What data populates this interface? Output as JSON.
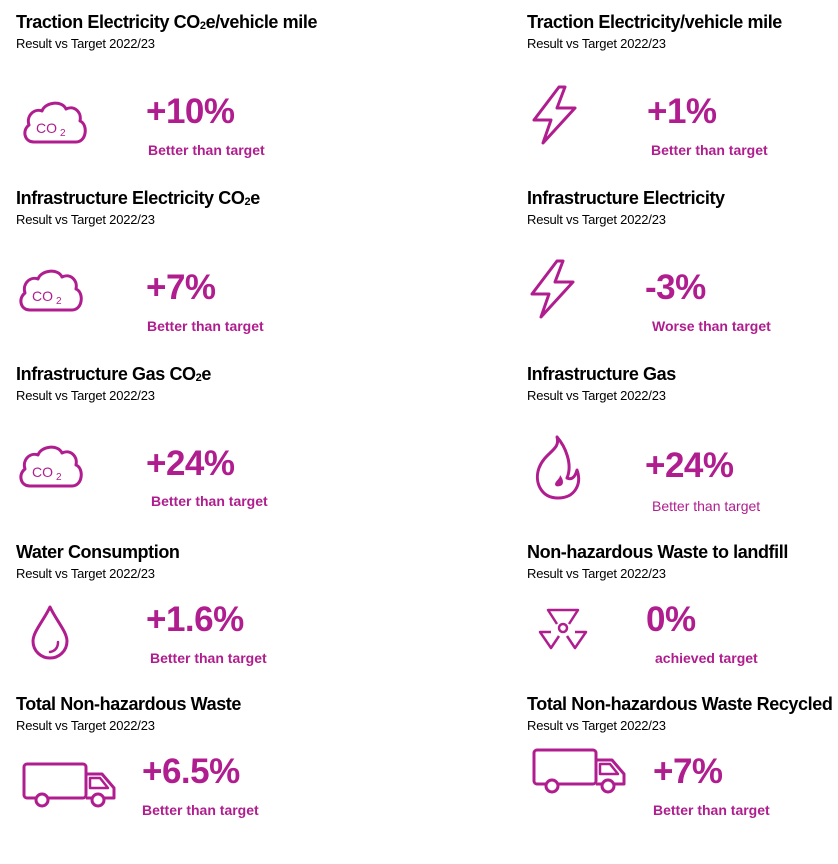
{
  "accent_color": "#b01d8e",
  "cards": [
    {
      "title_main": "Traction Electricity CO",
      "title_sub": "2",
      "title_tail": "e/vehicle mile",
      "subtitle": "Result vs Target  2022/23",
      "value": "+10%",
      "status": "Better than target",
      "icon": "co2-cloud-icon"
    },
    {
      "title_main": "Traction Electricity/vehicle mile",
      "title_sub": "",
      "title_tail": "",
      "subtitle": "Result vs Target  2022/23",
      "value": "+1%",
      "status": "Better than target",
      "icon": "lightning-bolt-icon"
    },
    {
      "title_main": "Infrastructure Electricity CO",
      "title_sub": "2",
      "title_tail": "e",
      "subtitle": "Result vs Target  2022/23",
      "value": "+7%",
      "status": "Better than target",
      "icon": "co2-cloud-icon"
    },
    {
      "title_main": "Infrastructure Electricity",
      "title_sub": "",
      "title_tail": "",
      "subtitle": "Result vs Target  2022/23",
      "value": "-3%",
      "status": "Worse than target",
      "icon": "lightning-bolt-icon"
    },
    {
      "title_main": "Infrastructure Gas CO",
      "title_sub": "2",
      "title_tail": "e",
      "subtitle": "Result vs Target  2022/23",
      "value": "+24%",
      "status": "Better than target",
      "icon": "co2-cloud-icon"
    },
    {
      "title_main": "Infrastructure Gas",
      "title_sub": "",
      "title_tail": "",
      "subtitle": "Result vs Target  2022/23",
      "value": "+24%",
      "status": "Better than target",
      "icon": "flame-icon"
    },
    {
      "title_main": "Water Consumption",
      "title_sub": "",
      "title_tail": "",
      "subtitle": "Result vs Target  2022/23",
      "value": "+1.6%",
      "status": "Better than target",
      "icon": "water-drop-icon"
    },
    {
      "title_main": "Non-hazardous Waste to landfill",
      "title_sub": "",
      "title_tail": "",
      "subtitle": "Result vs Target  2022/23",
      "value": "0%",
      "status": "achieved target",
      "icon": "radiation-symbol-icon"
    },
    {
      "title_main": "Total Non-hazardous Waste",
      "title_sub": "",
      "title_tail": "",
      "subtitle": "Result vs Target  2022/23",
      "value": "+6.5%",
      "status": "Better than target",
      "icon": "truck-icon"
    },
    {
      "title_main": "Total Non-hazardous Waste Recycled",
      "title_sub": "",
      "title_tail": "",
      "subtitle": "Result vs Target  2022/23",
      "value": "+7%",
      "status": "Better than target",
      "icon": "truck-icon"
    }
  ]
}
